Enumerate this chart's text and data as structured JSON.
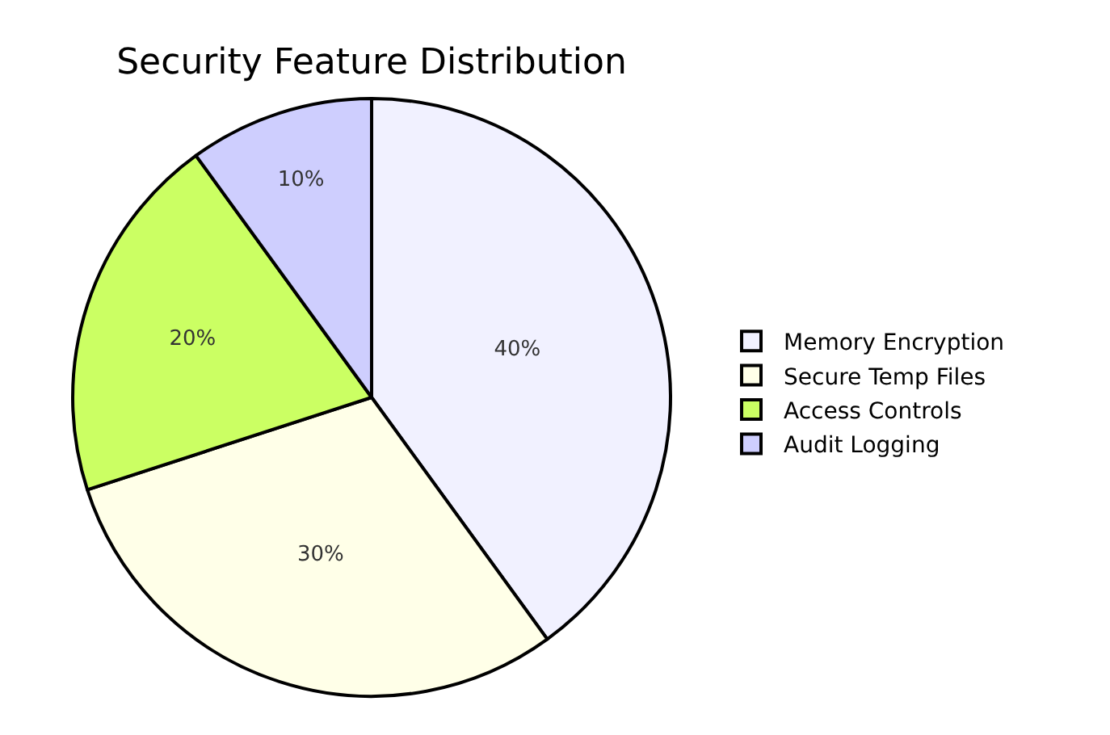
{
  "chart_data": {
    "type": "pie",
    "title": "Security Feature Distribution",
    "categories": [
      "Memory Encryption",
      "Secure Temp Files",
      "Access Controls",
      "Audit Logging"
    ],
    "values": [
      40,
      30,
      20,
      10
    ],
    "value_labels": [
      "40%",
      "30%",
      "20%",
      "10%"
    ],
    "colors": [
      "#f1f1ff",
      "#ffffe8",
      "#cbff63",
      "#cecefe"
    ],
    "legend": "right"
  }
}
